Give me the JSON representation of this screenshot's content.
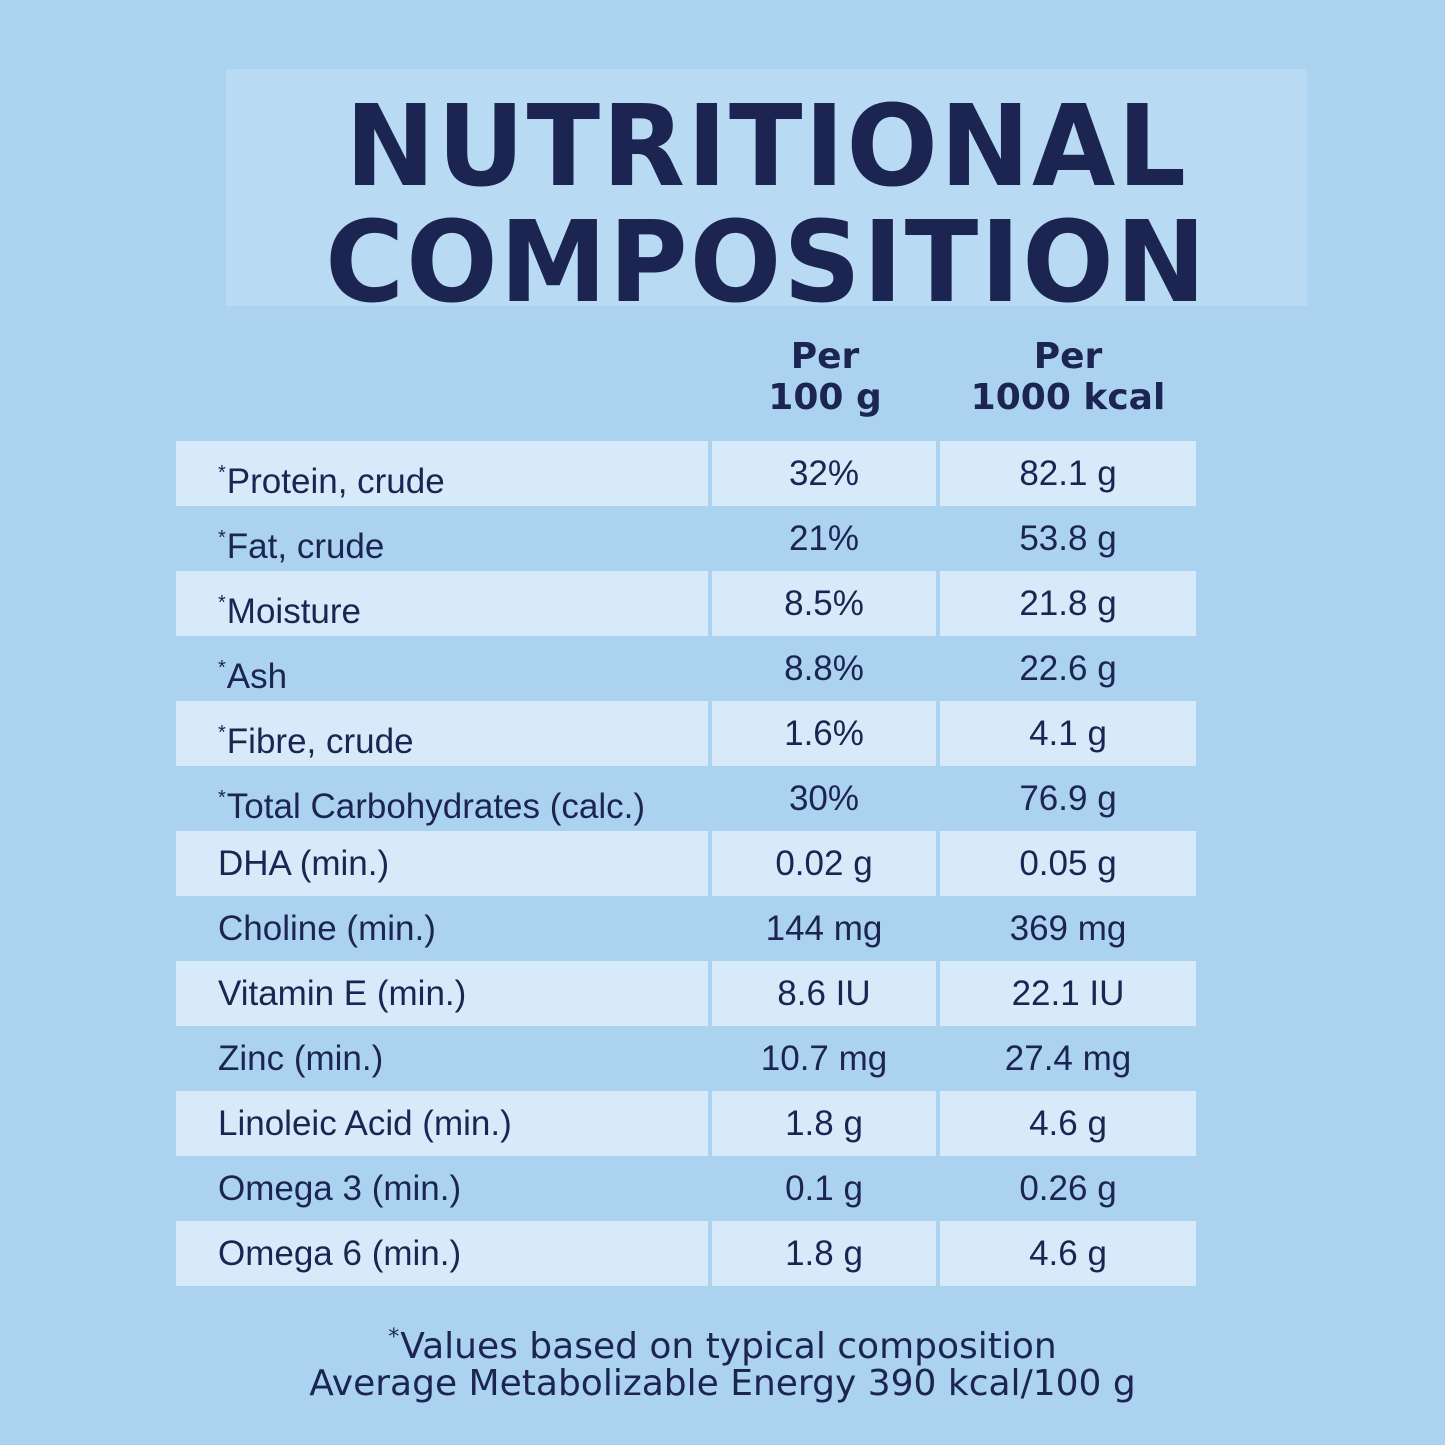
{
  "title": {
    "line1": "NUTRITIONAL",
    "line2": "COMPOSITION"
  },
  "columns": {
    "per100g": [
      "Per",
      "100 g"
    ],
    "per1000kcal": [
      "Per",
      "1000 kcal"
    ]
  },
  "rows": [
    {
      "star": "*",
      "name": "Protein, crude",
      "per100g": "32%",
      "per1000kcal": "82.1 g"
    },
    {
      "star": "*",
      "name": "Fat, crude",
      "per100g": "21%",
      "per1000kcal": "53.8 g"
    },
    {
      "star": "*",
      "name": "Moisture",
      "per100g": "8.5%",
      "per1000kcal": "21.8 g"
    },
    {
      "star": "*",
      "name": "Ash",
      "per100g": "8.8%",
      "per1000kcal": "22.6 g"
    },
    {
      "star": "*",
      "name": "Fibre, crude",
      "per100g": "1.6%",
      "per1000kcal": "4.1 g"
    },
    {
      "star": "*",
      "name": "Total Carbohydrates (calc.)",
      "per100g": "30%",
      "per1000kcal": "76.9 g"
    },
    {
      "star": "",
      "name": "DHA (min.)",
      "per100g": "0.02 g",
      "per1000kcal": "0.05 g"
    },
    {
      "star": "",
      "name": "Choline (min.)",
      "per100g": "144 mg",
      "per1000kcal": "369 mg"
    },
    {
      "star": "",
      "name": "Vitamin E (min.)",
      "per100g": "8.6 IU",
      "per1000kcal": "22.1 IU"
    },
    {
      "star": "",
      "name": "Zinc (min.)",
      "per100g": "10.7 mg",
      "per1000kcal": "27.4 mg"
    },
    {
      "star": "",
      "name": "Linoleic Acid (min.)",
      "per100g": "1.8 g",
      "per1000kcal": "4.6 g"
    },
    {
      "star": "",
      "name": "Omega 3 (min.)",
      "per100g": "0.1 g",
      "per1000kcal": "0.26 g"
    },
    {
      "star": "",
      "name": "Omega 6 (min.)",
      "per100g": "1.8 g",
      "per1000kcal": "4.6 g"
    }
  ],
  "footnote": {
    "star": "*",
    "line1": "Values based on typical composition",
    "line2": "Average Metabolizable Energy 390 kcal/100 g"
  }
}
